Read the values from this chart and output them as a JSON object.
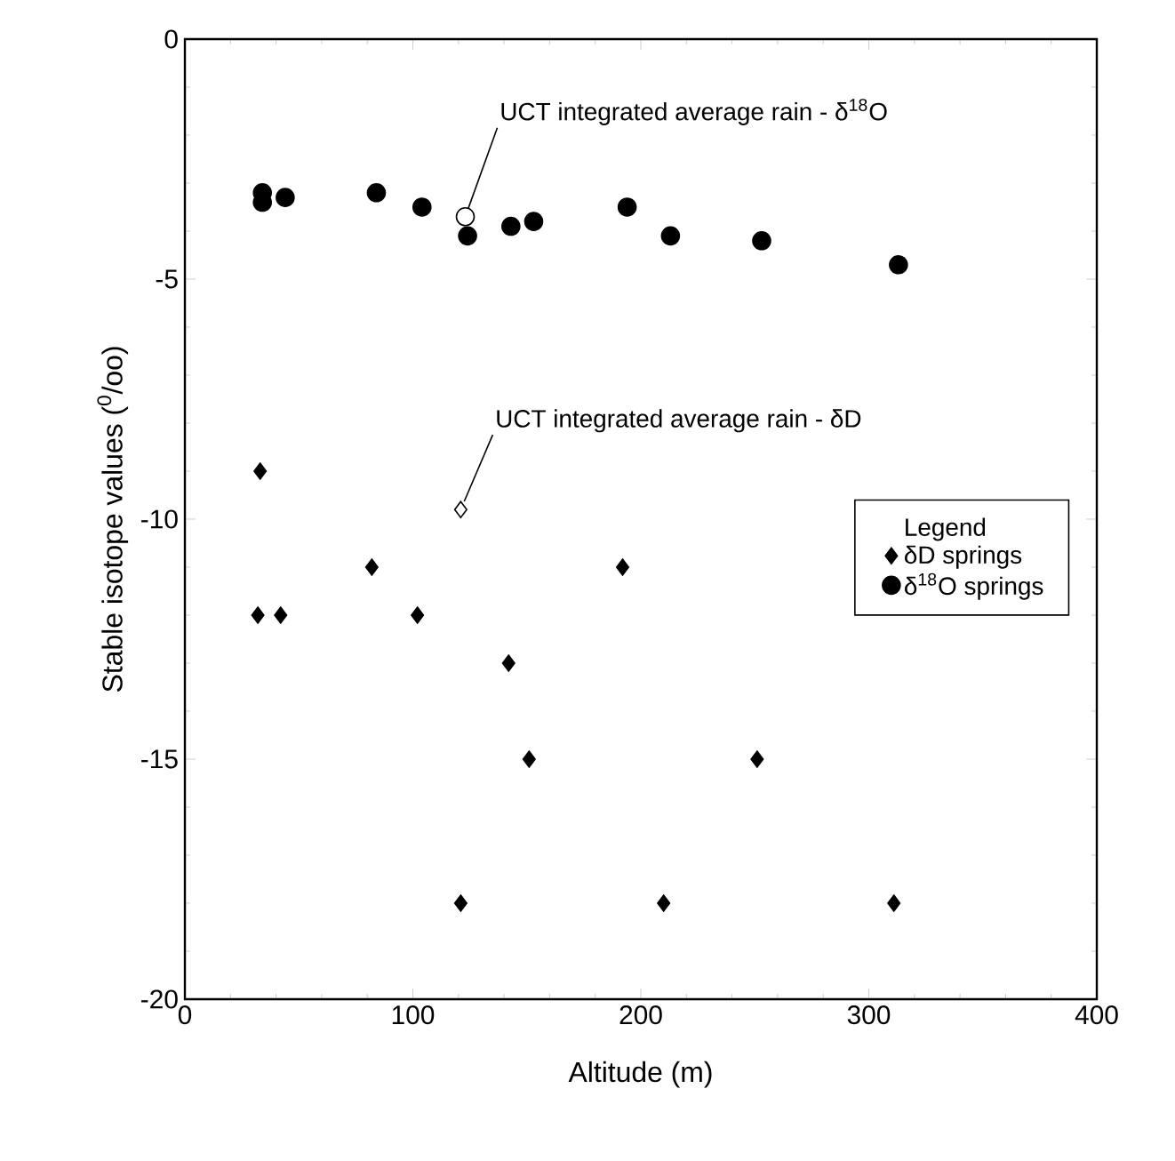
{
  "chart_data": {
    "type": "scatter",
    "xlabel": "Altitude (m)",
    "ylabel": "Stable isotope values ($^{0}$/oo)",
    "legend_title": "Legend",
    "legend": "right",
    "grid": false,
    "xlim": [
      0,
      400
    ],
    "ylim": [
      -20,
      0
    ],
    "xticks": [
      0,
      100,
      200,
      300,
      400
    ],
    "yticks": [
      -20,
      -15,
      -10,
      -5,
      0
    ],
    "series": [
      {
        "name": "δD springs",
        "color": "#000000",
        "marker": "diamond",
        "x": [
          33,
          32,
          42,
          82,
          102,
          121,
          142,
          151,
          192,
          210,
          251,
          311
        ],
        "values": [
          -9,
          -12,
          -12,
          -11,
          -12,
          -18,
          -13,
          -15,
          -11,
          -18,
          -15,
          -18
        ]
      },
      {
        "name": "δ$^{18}$O springs",
        "color": "#000000",
        "marker": "circle",
        "x": [
          34,
          34,
          44,
          84,
          104,
          124,
          143,
          153,
          194,
          213,
          253,
          313
        ],
        "values": [
          -3.2,
          -3.4,
          -3.3,
          -3.2,
          -3.5,
          -4.1,
          -3.9,
          -3.8,
          -3.5,
          -4.1,
          -4.2,
          -4.7
        ]
      },
      {
        "color": "#ffffff",
        "marker": "circle",
        "x": [
          123
        ],
        "values": [
          -3.7
        ]
      },
      {
        "color": "#ffffff",
        "marker": "diamond",
        "x": [
          121
        ],
        "values": [
          -9.8
        ]
      }
    ],
    "annotations": [
      {
        "text": "UCT integrated average rain - δ$^{18}$O",
        "x": 123,
        "y": -3.7
      },
      {
        "text": "UCT integrated average rain - δD",
        "x": 121,
        "y": -9.8
      }
    ]
  }
}
